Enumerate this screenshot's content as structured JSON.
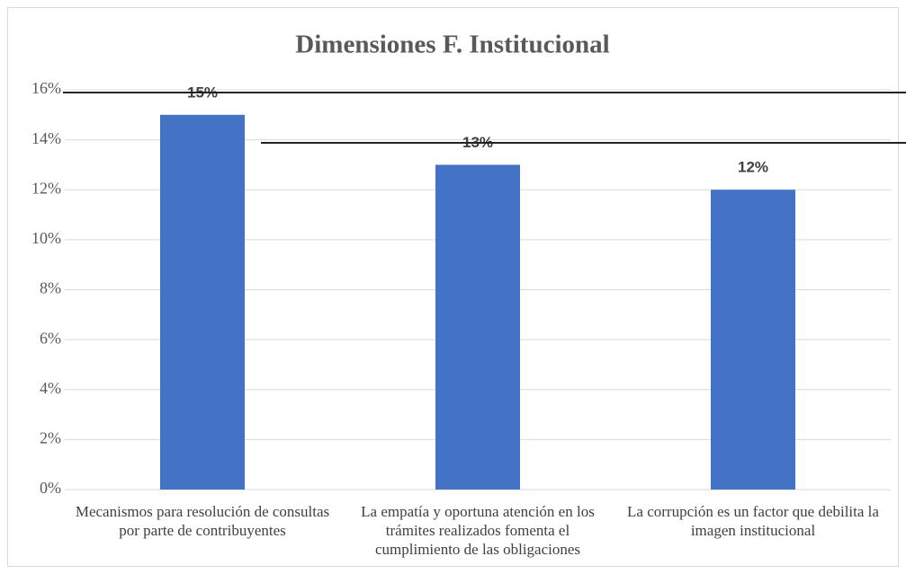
{
  "chart_data": {
    "type": "bar",
    "title": "Dimensiones F. Institucional",
    "categories": [
      "Mecanismos para resolución de consultas por parte de contribuyentes",
      "La empatía y oportuna atención en los trámites realizados fomenta el cumplimiento de las obligaciones",
      "La corrupción es un factor que debilita la imagen institucional"
    ],
    "values": [
      15,
      13,
      12
    ],
    "value_labels": [
      "15%",
      "13%",
      "12%"
    ],
    "color": "#4472c4",
    "ylim": [
      0,
      16
    ],
    "yticks": [
      {
        "value": 0,
        "label": "0%"
      },
      {
        "value": 2,
        "label": "2%"
      },
      {
        "value": 4,
        "label": "4%"
      },
      {
        "value": 6,
        "label": "6%"
      },
      {
        "value": 8,
        "label": "8%"
      },
      {
        "value": 10,
        "label": "10%"
      },
      {
        "value": 12,
        "label": "12%"
      },
      {
        "value": 14,
        "label": "14%"
      },
      {
        "value": 16,
        "label": "16%"
      }
    ],
    "grid": true
  }
}
